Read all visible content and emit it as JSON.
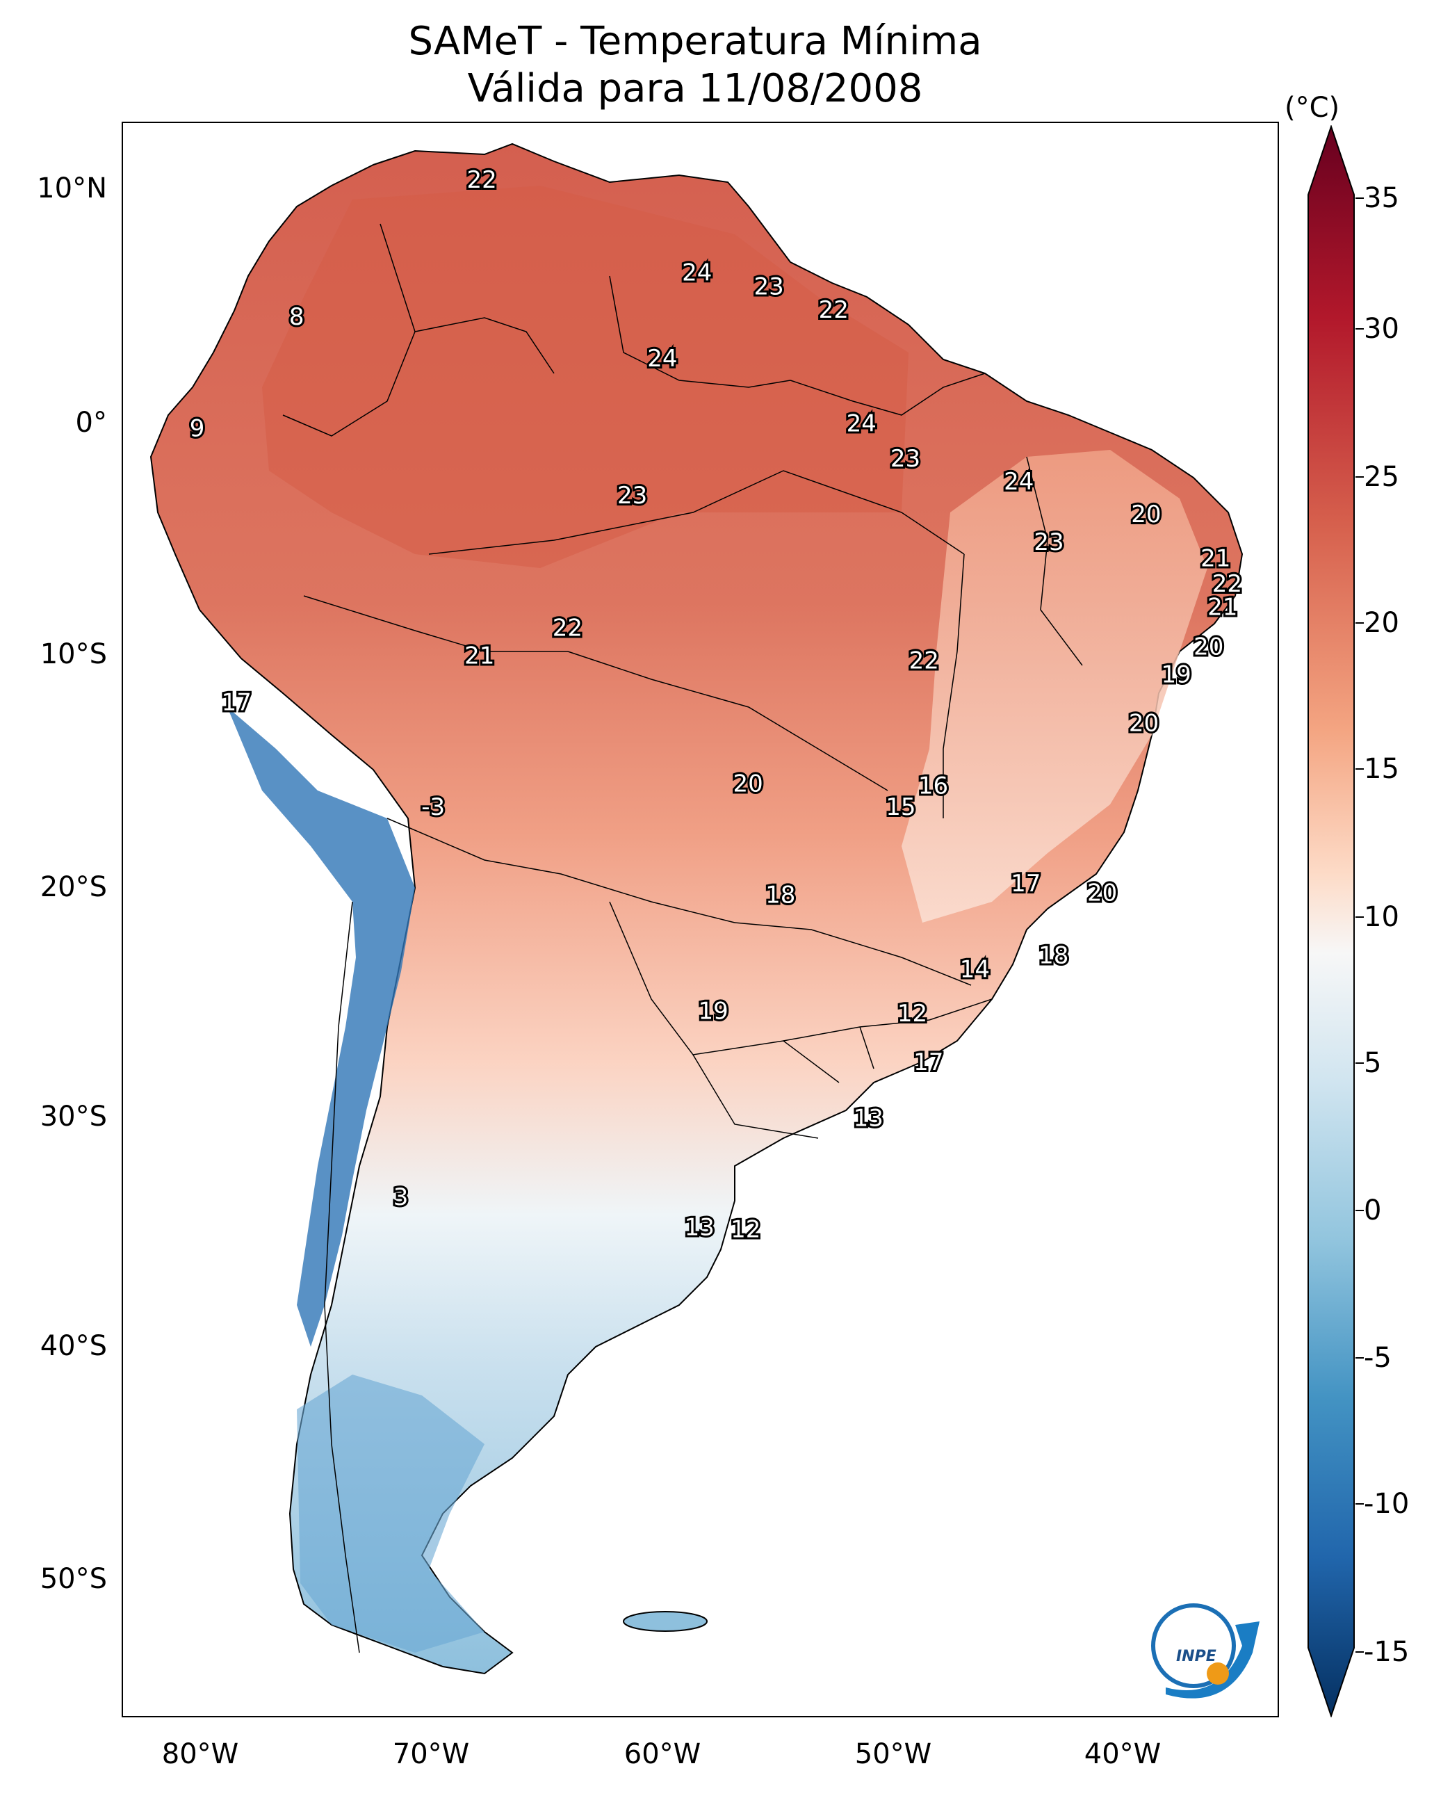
{
  "title": {
    "line1": "SAMeT - Temperatura Mínima",
    "line2": "Válida para 11/08/2008"
  },
  "axes": {
    "lat_ticks": [
      "10°N",
      "0°",
      "10°S",
      "20°S",
      "30°S",
      "40°S",
      "50°S"
    ],
    "lon_ticks": [
      "80°W",
      "70°W",
      "60°W",
      "50°W",
      "40°W"
    ]
  },
  "colorbar": {
    "unit": "(°C)",
    "ticks": [
      "35",
      "30",
      "25",
      "20",
      "15",
      "10",
      "5",
      "0",
      "-5",
      "-10",
      "-15"
    ],
    "min": -17,
    "max": 37,
    "colors": {
      "dark_red": "#67001f",
      "red": "#b2182b",
      "orange_red": "#d6604d",
      "salmon": "#f4a582",
      "peach": "#fddbc7",
      "white": "#f7f7f7",
      "light_blue": "#d1e5f0",
      "sky_blue": "#92c5de",
      "blue": "#4393c3",
      "dark_blue": "#2166ac",
      "navy": "#053061"
    }
  },
  "map_labels": [
    {
      "text": "22",
      "lon": -67.5,
      "lat": 10.5
    },
    {
      "text": "8",
      "lon": -75.5,
      "lat": 4.6
    },
    {
      "text": "24",
      "lon": -58.2,
      "lat": 6.5
    },
    {
      "text": "23",
      "lon": -55.1,
      "lat": 5.9
    },
    {
      "text": "22",
      "lon": -52.3,
      "lat": 4.9
    },
    {
      "text": "24",
      "lon": -59.7,
      "lat": 2.8
    },
    {
      "text": "9",
      "lon": -79.8,
      "lat": -0.2
    },
    {
      "text": "24",
      "lon": -51.1,
      "lat": 0.0
    },
    {
      "text": "23",
      "lon": -49.2,
      "lat": -1.5
    },
    {
      "text": "23",
      "lon": -61.0,
      "lat": -3.1
    },
    {
      "text": "24",
      "lon": -44.3,
      "lat": -2.5
    },
    {
      "text": "20",
      "lon": -38.8,
      "lat": -3.9
    },
    {
      "text": "23",
      "lon": -43.0,
      "lat": -5.1
    },
    {
      "text": "21",
      "lon": -35.8,
      "lat": -5.8
    },
    {
      "text": "22",
      "lon": -35.3,
      "lat": -6.9
    },
    {
      "text": "21",
      "lon": -35.5,
      "lat": -7.9
    },
    {
      "text": "22",
      "lon": -63.8,
      "lat": -8.8
    },
    {
      "text": "21",
      "lon": -67.6,
      "lat": -10.0
    },
    {
      "text": "20",
      "lon": -36.1,
      "lat": -9.6
    },
    {
      "text": "22",
      "lon": -48.4,
      "lat": -10.2
    },
    {
      "text": "19",
      "lon": -37.5,
      "lat": -10.8
    },
    {
      "text": "17",
      "lon": -78.1,
      "lat": -12.0
    },
    {
      "text": "20",
      "lon": -38.9,
      "lat": -12.9
    },
    {
      "text": "16",
      "lon": -48.0,
      "lat": -15.6
    },
    {
      "text": "20",
      "lon": -56.0,
      "lat": -15.5
    },
    {
      "text": "15",
      "lon": -49.4,
      "lat": -16.5
    },
    {
      "text": "-3",
      "lon": -69.6,
      "lat": -16.5
    },
    {
      "text": "17",
      "lon": -44.0,
      "lat": -19.8
    },
    {
      "text": "20",
      "lon": -40.7,
      "lat": -20.2
    },
    {
      "text": "18",
      "lon": -54.6,
      "lat": -20.3
    },
    {
      "text": "18",
      "lon": -42.8,
      "lat": -22.9
    },
    {
      "text": "14",
      "lon": -46.2,
      "lat": -23.5
    },
    {
      "text": "19",
      "lon": -57.5,
      "lat": -25.3
    },
    {
      "text": "12",
      "lon": -48.9,
      "lat": -25.4
    },
    {
      "text": "17",
      "lon": -48.2,
      "lat": -27.5
    },
    {
      "text": "13",
      "lon": -50.8,
      "lat": -29.9
    },
    {
      "text": "3",
      "lon": -71.0,
      "lat": -33.3
    },
    {
      "text": "13",
      "lon": -58.1,
      "lat": -34.6
    },
    {
      "text": "12",
      "lon": -56.1,
      "lat": -34.7
    }
  ],
  "logo": {
    "text": "INPE"
  }
}
